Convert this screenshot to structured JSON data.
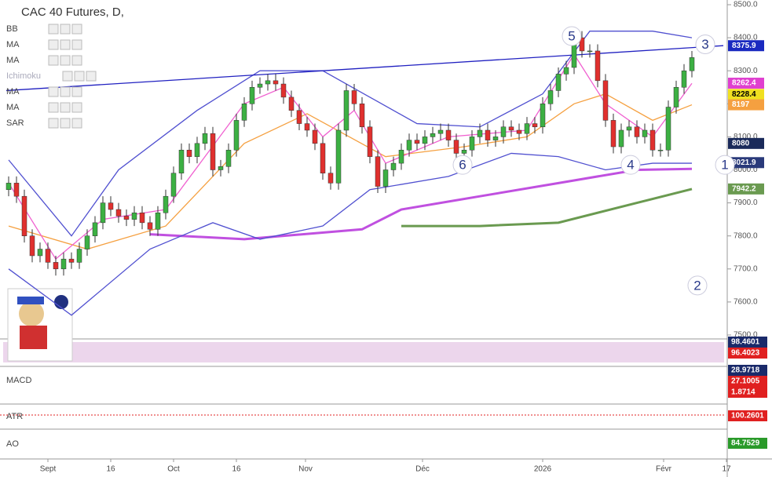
{
  "chart_data": {
    "type": "candlestick",
    "title": "CAC 40 Futures, D,",
    "indicators": [
      "BB",
      "MA",
      "MA",
      "Ichimoku",
      "MA",
      "MA",
      "SAR"
    ],
    "ohlc": [
      [
        7940,
        7980,
        7920,
        7960
      ],
      [
        7960,
        7980,
        7900,
        7920
      ],
      [
        7920,
        7940,
        7780,
        7800
      ],
      [
        7800,
        7820,
        7720,
        7740
      ],
      [
        7740,
        7780,
        7720,
        7760
      ],
      [
        7760,
        7780,
        7700,
        7720
      ],
      [
        7720,
        7740,
        7680,
        7700
      ],
      [
        7700,
        7750,
        7680,
        7730
      ],
      [
        7730,
        7750,
        7700,
        7720
      ],
      [
        7720,
        7780,
        7700,
        7760
      ],
      [
        7760,
        7820,
        7740,
        7800
      ],
      [
        7800,
        7860,
        7780,
        7840
      ],
      [
        7840,
        7920,
        7820,
        7900
      ],
      [
        7900,
        7920,
        7860,
        7880
      ],
      [
        7880,
        7900,
        7840,
        7860
      ],
      [
        7860,
        7880,
        7830,
        7850
      ],
      [
        7850,
        7890,
        7830,
        7870
      ],
      [
        7870,
        7890,
        7820,
        7840
      ],
      [
        7840,
        7860,
        7800,
        7820
      ],
      [
        7820,
        7890,
        7800,
        7870
      ],
      [
        7870,
        7940,
        7850,
        7920
      ],
      [
        7920,
        8010,
        7900,
        7990
      ],
      [
        7990,
        8080,
        7970,
        8060
      ],
      [
        8060,
        8080,
        8020,
        8040
      ],
      [
        8040,
        8100,
        8020,
        8080
      ],
      [
        8080,
        8130,
        8060,
        8110
      ],
      [
        8110,
        8130,
        7980,
        8000
      ],
      [
        8000,
        8030,
        7980,
        8010
      ],
      [
        8010,
        8080,
        7990,
        8060
      ],
      [
        8060,
        8170,
        8040,
        8150
      ],
      [
        8150,
        8220,
        8130,
        8200
      ],
      [
        8200,
        8270,
        8180,
        8250
      ],
      [
        8250,
        8280,
        8230,
        8260
      ],
      [
        8260,
        8290,
        8240,
        8270
      ],
      [
        8270,
        8290,
        8240,
        8260
      ],
      [
        8260,
        8280,
        8200,
        8220
      ],
      [
        8220,
        8240,
        8160,
        8180
      ],
      [
        8180,
        8200,
        8120,
        8140
      ],
      [
        8140,
        8160,
        8100,
        8120
      ],
      [
        8120,
        8140,
        8060,
        8080
      ],
      [
        8080,
        8100,
        7970,
        7990
      ],
      [
        7990,
        8010,
        7940,
        7960
      ],
      [
        7960,
        8140,
        7940,
        8120
      ],
      [
        8120,
        8260,
        8100,
        8240
      ],
      [
        8240,
        8260,
        8180,
        8200
      ],
      [
        8200,
        8220,
        8110,
        8130
      ],
      [
        8130,
        8150,
        8020,
        8040
      ],
      [
        8040,
        8060,
        7930,
        7950
      ],
      [
        7950,
        8020,
        7930,
        8000
      ],
      [
        8000,
        8040,
        7980,
        8020
      ],
      [
        8020,
        8080,
        8000,
        8060
      ],
      [
        8060,
        8110,
        8040,
        8090
      ],
      [
        8090,
        8110,
        8060,
        8080
      ],
      [
        8080,
        8120,
        8060,
        8100
      ],
      [
        8100,
        8130,
        8080,
        8110
      ],
      [
        8110,
        8140,
        8090,
        8120
      ],
      [
        8120,
        8140,
        8070,
        8090
      ],
      [
        8090,
        8110,
        8030,
        8050
      ],
      [
        8050,
        8080,
        8030,
        8060
      ],
      [
        8060,
        8120,
        8040,
        8100
      ],
      [
        8100,
        8140,
        8080,
        8120
      ],
      [
        8120,
        8140,
        8070,
        8090
      ],
      [
        8090,
        8120,
        8070,
        8100
      ],
      [
        8100,
        8150,
        8080,
        8130
      ],
      [
        8130,
        8150,
        8100,
        8120
      ],
      [
        8120,
        8140,
        8090,
        8110
      ],
      [
        8110,
        8160,
        8090,
        8140
      ],
      [
        8140,
        8160,
        8110,
        8130
      ],
      [
        8130,
        8220,
        8110,
        8200
      ],
      [
        8200,
        8260,
        8180,
        8240
      ],
      [
        8240,
        8310,
        8220,
        8290
      ],
      [
        8290,
        8330,
        8270,
        8310
      ],
      [
        8310,
        8420,
        8290,
        8400
      ],
      [
        8400,
        8420,
        8340,
        8360
      ],
      [
        8360,
        8380,
        8340,
        8360
      ],
      [
        8360,
        8380,
        8250,
        8270
      ],
      [
        8270,
        8290,
        8130,
        8150
      ],
      [
        8150,
        8170,
        8050,
        8070
      ],
      [
        8070,
        8140,
        8050,
        8120
      ],
      [
        8120,
        8150,
        8100,
        8130
      ],
      [
        8130,
        8150,
        8080,
        8100
      ],
      [
        8100,
        8140,
        8080,
        8120
      ],
      [
        8120,
        8140,
        8040,
        8060
      ],
      [
        8060,
        8080,
        8040,
        8060
      ],
      [
        8060,
        8210,
        8040,
        8190
      ],
      [
        8190,
        8270,
        8170,
        8250
      ],
      [
        8250,
        8320,
        8230,
        8300
      ],
      [
        8300,
        8360,
        8280,
        8340
      ]
    ],
    "up_color": "#3cb043",
    "down_color": "#e0302e",
    "overlays": [
      {
        "color": "#c050e0",
        "points": [
          [
            18,
            7805
          ],
          [
            30,
            7790
          ],
          [
            45,
            7820
          ],
          [
            50,
            7880
          ],
          [
            60,
            7920
          ],
          [
            70,
            7960
          ],
          [
            80,
            8000
          ],
          [
            87,
            8003
          ]
        ]
      },
      {
        "color": "#6a9a50",
        "points": [
          [
            50,
            7830
          ],
          [
            60,
            7830
          ],
          [
            70,
            7840
          ],
          [
            80,
            7900
          ],
          [
            87,
            7942
          ]
        ]
      },
      {
        "color": "#f5a040",
        "points": [
          [
            0,
            7830
          ],
          [
            10,
            7760
          ],
          [
            20,
            7830
          ],
          [
            30,
            8080
          ],
          [
            38,
            8170
          ],
          [
            48,
            8040
          ],
          [
            58,
            8070
          ],
          [
            66,
            8100
          ],
          [
            72,
            8200
          ],
          [
            76,
            8230
          ],
          [
            82,
            8150
          ],
          [
            87,
            8197
          ]
        ]
      },
      {
        "color": "#f060d0",
        "points": [
          [
            0,
            7960
          ],
          [
            6,
            7730
          ],
          [
            12,
            7850
          ],
          [
            20,
            7880
          ],
          [
            30,
            8200
          ],
          [
            35,
            8250
          ],
          [
            40,
            8100
          ],
          [
            44,
            8180
          ],
          [
            48,
            8020
          ],
          [
            56,
            8100
          ],
          [
            66,
            8120
          ],
          [
            72,
            8350
          ],
          [
            76,
            8200
          ],
          [
            82,
            8100
          ],
          [
            87,
            8262
          ]
        ]
      },
      {
        "color": "#5050d0",
        "points": [
          [
            0,
            8030
          ],
          [
            8,
            7800
          ],
          [
            14,
            8000
          ],
          [
            24,
            8180
          ],
          [
            32,
            8300
          ],
          [
            40,
            8300
          ],
          [
            46,
            8220
          ],
          [
            52,
            8140
          ],
          [
            60,
            8130
          ],
          [
            68,
            8230
          ],
          [
            74,
            8420
          ],
          [
            82,
            8420
          ],
          [
            87,
            8400
          ]
        ]
      },
      {
        "color": "#5050d0",
        "points": [
          [
            0,
            7700
          ],
          [
            8,
            7560
          ],
          [
            18,
            7760
          ],
          [
            26,
            7840
          ],
          [
            32,
            7790
          ],
          [
            40,
            7830
          ],
          [
            46,
            7940
          ],
          [
            56,
            7980
          ],
          [
            64,
            8050
          ],
          [
            70,
            8040
          ],
          [
            76,
            8000
          ],
          [
            82,
            8020
          ],
          [
            87,
            8020
          ]
        ]
      },
      {
        "color": "#2020c0",
        "points": [
          [
            -0.3,
            8240
          ],
          [
            91,
            8376
          ]
        ]
      }
    ],
    "ylim": [
      7500,
      8500
    ],
    "yticks": [
      {
        "value": 8500,
        "label": "8500.0"
      },
      {
        "value": 8400,
        "label": "8400.0"
      },
      {
        "value": 8300,
        "label": "8300.0"
      },
      {
        "value": 8200,
        "label": "8200.0"
      },
      {
        "value": 8100,
        "label": "8100.0"
      },
      {
        "value": 8000,
        "label": "8000.0"
      },
      {
        "value": 7900,
        "label": "7900.0"
      },
      {
        "value": 7800,
        "label": "7800.0"
      },
      {
        "value": 7700,
        "label": "7700.0"
      },
      {
        "value": 7600,
        "label": "7600.0"
      },
      {
        "value": 7500,
        "label": "7500.0"
      }
    ],
    "xlim": [
      -0.3,
      91.7
    ],
    "xticks": [
      {
        "value": 5,
        "label": "Sept"
      },
      {
        "value": 13,
        "label": "16"
      },
      {
        "value": 21,
        "label": "Oct"
      },
      {
        "value": 29,
        "label": "16"
      },
      {
        "value": 37.8,
        "label": "Nov"
      },
      {
        "value": 52.7,
        "label": "Déc"
      },
      {
        "value": 68,
        "label": "2026"
      },
      {
        "value": 83.4,
        "label": "Févr"
      },
      {
        "value": 91.4,
        "label": "17"
      }
    ],
    "price_labels": [
      {
        "value": 8375.9,
        "color": "#1a2ac0"
      },
      {
        "value": 8262.4,
        "color": "#e040d0"
      },
      {
        "value": 8228.4,
        "color": "#f0e020"
      },
      {
        "value": 8197.0,
        "color": "#f5a040"
      },
      {
        "value": 8080.0,
        "color": "#1a2a5a"
      },
      {
        "value": 8021.9,
        "color": "#2a3a7a"
      },
      {
        "value": 7942.2,
        "color": "#6a9a50"
      }
    ],
    "wave_labels": [
      {
        "label": "5",
        "x": 71.7,
        "value": 8405
      },
      {
        "label": "3",
        "x": 88.7,
        "value": 8380
      },
      {
        "label": "6",
        "x": 57.8,
        "value": 8015
      },
      {
        "label": "4",
        "x": 79.2,
        "value": 8015
      },
      {
        "label": "1",
        "x": 91.2,
        "value": 8015
      },
      {
        "label": "2",
        "x": 87.7,
        "value": 7650
      }
    ],
    "panes": [
      {
        "label": null,
        "values": [
          "98.4601",
          "96.4023"
        ]
      },
      {
        "label": "MACD",
        "values": [
          "28.9718",
          "27.1005",
          "1.8714"
        ]
      },
      {
        "label": "ATR",
        "values": [
          "100.2601"
        ]
      },
      {
        "label": "AO",
        "values": [
          "84.7529"
        ]
      }
    ]
  }
}
